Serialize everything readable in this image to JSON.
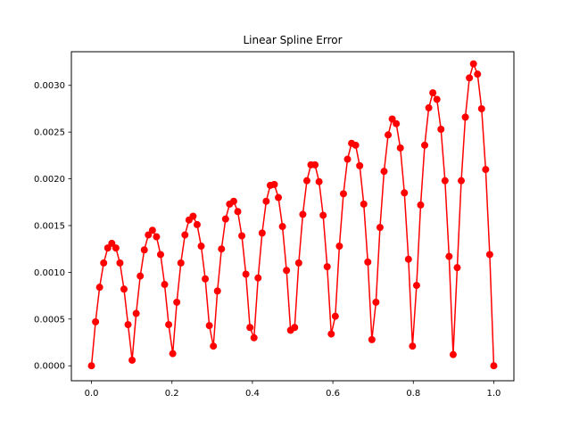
{
  "chart_data": {
    "type": "line",
    "title": "Linear Spline Error",
    "xlabel": "",
    "ylabel": "",
    "xlim": [
      -0.05,
      1.05
    ],
    "ylim": [
      -0.00016,
      0.00336
    ],
    "x_ticks": [
      0.0,
      0.2,
      0.4,
      0.6,
      0.8,
      1.0
    ],
    "x_tick_labels": [
      "0.0",
      "0.2",
      "0.4",
      "0.6",
      "0.8",
      "1.0"
    ],
    "y_ticks": [
      0.0,
      0.0005,
      0.001,
      0.0015,
      0.002,
      0.0025,
      0.003
    ],
    "y_tick_labels": [
      "0.0000",
      "0.0005",
      "0.0010",
      "0.0015",
      "0.0020",
      "0.0025",
      "0.0030"
    ],
    "grid": false,
    "series": [
      {
        "color": "#ff0000",
        "marker": "circle",
        "x": [
          0.0,
          0.0101,
          0.0202,
          0.0303,
          0.0404,
          0.0505,
          0.0606,
          0.0707,
          0.0808,
          0.0909,
          0.101,
          0.1111,
          0.1212,
          0.1313,
          0.1414,
          0.1515,
          0.1616,
          0.1717,
          0.1818,
          0.1919,
          0.202,
          0.2121,
          0.2222,
          0.2323,
          0.2424,
          0.2525,
          0.2626,
          0.2727,
          0.2828,
          0.2929,
          0.303,
          0.3131,
          0.3232,
          0.3333,
          0.3434,
          0.3535,
          0.3636,
          0.3737,
          0.3838,
          0.3939,
          0.404,
          0.4141,
          0.4242,
          0.4343,
          0.4444,
          0.4545,
          0.4646,
          0.4747,
          0.4848,
          0.4949,
          0.505,
          0.5152,
          0.5253,
          0.5354,
          0.5455,
          0.5556,
          0.5657,
          0.5758,
          0.5859,
          0.596,
          0.6061,
          0.6162,
          0.6263,
          0.6364,
          0.6465,
          0.6566,
          0.6667,
          0.6768,
          0.6869,
          0.697,
          0.7071,
          0.7172,
          0.7273,
          0.7374,
          0.7475,
          0.7576,
          0.7677,
          0.7778,
          0.7879,
          0.798,
          0.8081,
          0.8182,
          0.8283,
          0.8384,
          0.8485,
          0.8586,
          0.8687,
          0.8788,
          0.8889,
          0.899,
          0.9091,
          0.9192,
          0.9293,
          0.9394,
          0.9495,
          0.9596,
          0.9697,
          0.9798,
          0.9899,
          1.0
        ],
        "y": [
          0.0,
          0.00047,
          0.00084,
          0.0011,
          0.00126,
          0.00131,
          0.00126,
          0.0011,
          0.00082,
          0.00044,
          6e-05,
          0.00056,
          0.00096,
          0.00124,
          0.0014,
          0.00145,
          0.00138,
          0.00119,
          0.00087,
          0.00044,
          0.00013,
          0.00068,
          0.0011,
          0.0014,
          0.00156,
          0.0016,
          0.00151,
          0.00128,
          0.00093,
          0.00043,
          0.00021,
          0.0008,
          0.00125,
          0.00157,
          0.00173,
          0.00176,
          0.00165,
          0.00139,
          0.00098,
          0.00041,
          0.0003,
          0.00094,
          0.00142,
          0.00176,
          0.00193,
          0.00194,
          0.0018,
          0.00149,
          0.00102,
          0.00038,
          0.00041,
          0.0011,
          0.00162,
          0.00198,
          0.00215,
          0.00215,
          0.00197,
          0.00161,
          0.00106,
          0.00034,
          0.00053,
          0.00128,
          0.00184,
          0.00221,
          0.00238,
          0.00236,
          0.00214,
          0.00173,
          0.00111,
          0.00028,
          0.00068,
          0.00148,
          0.00208,
          0.00247,
          0.00264,
          0.00259,
          0.00233,
          0.00185,
          0.00114,
          0.00021,
          0.00086,
          0.00172,
          0.00236,
          0.00276,
          0.00292,
          0.00285,
          0.00253,
          0.00198,
          0.00117,
          0.00012,
          0.00105,
          0.00198,
          0.00266,
          0.00308,
          0.00323,
          0.00312,
          0.00275,
          0.0021,
          0.00119,
          0.0
        ]
      }
    ]
  }
}
